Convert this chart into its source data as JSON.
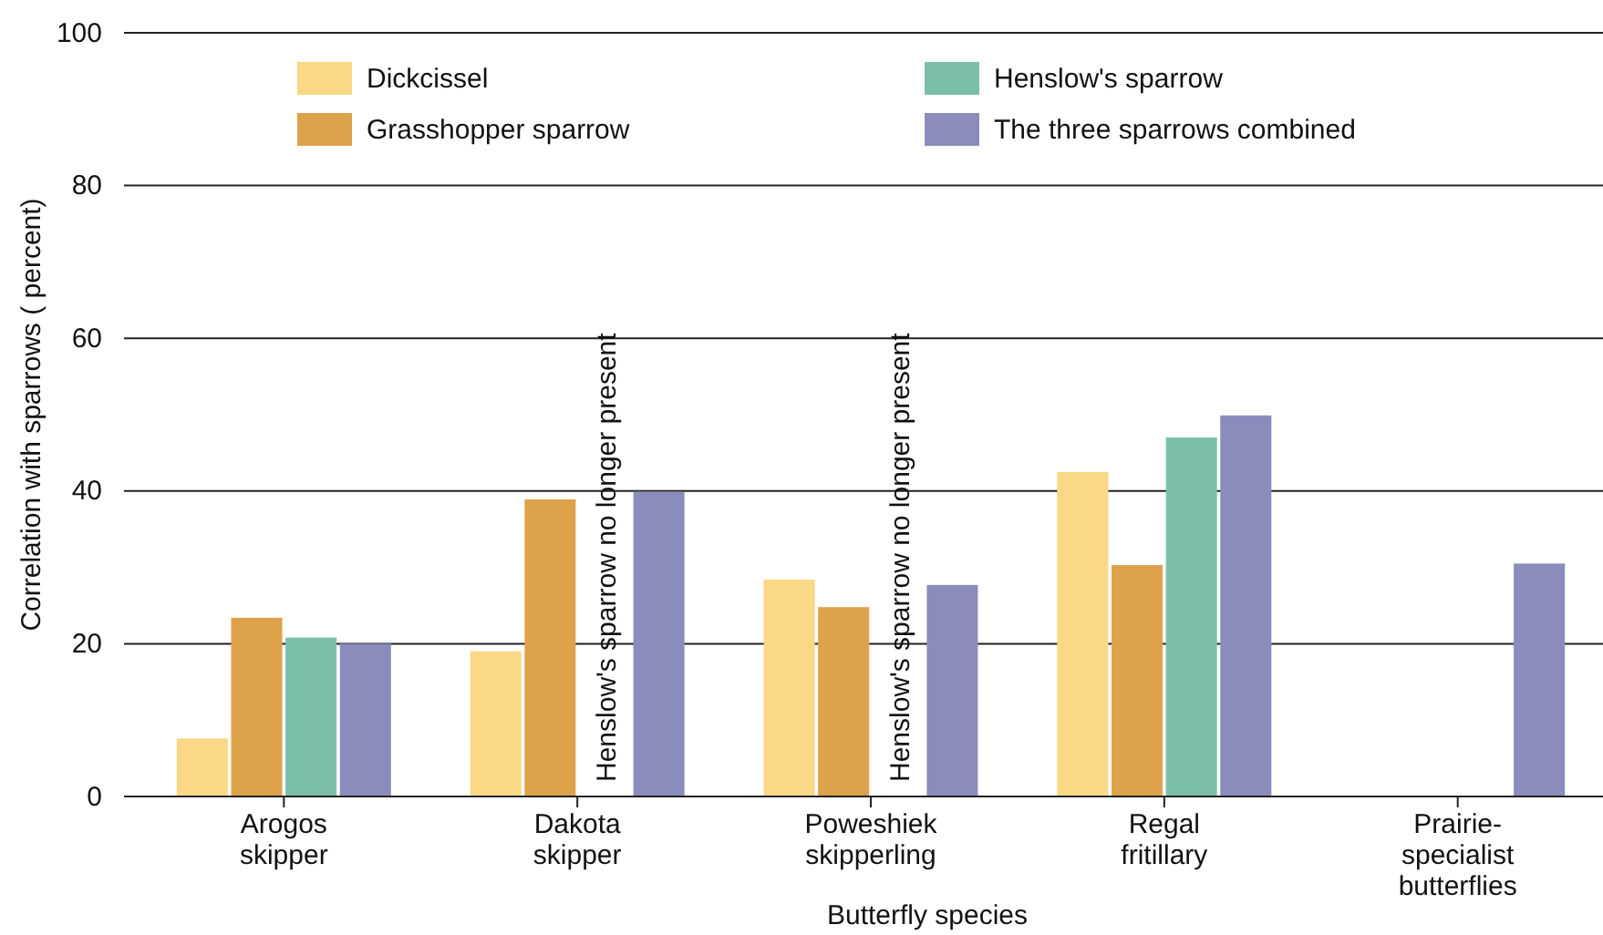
{
  "chart_data": {
    "type": "bar",
    "xlabel": "Butterfly species",
    "ylabel": "Correlation with sparrows ( percent)",
    "categories": [
      "Arogos\nskipper",
      "Dakota\nskipper",
      "Poweshiek\nskipperling",
      "Regal\nfritillary",
      "Prairie-\nspecialist\nbutterflies"
    ],
    "series": [
      {
        "name": "Dickcissel",
        "color": "#fad886",
        "values": [
          7.6,
          19,
          28.4,
          42.5,
          null
        ]
      },
      {
        "name": "Grasshopper sparrow",
        "color": "#dea24a",
        "values": [
          23.4,
          38.9,
          24.8,
          30.3,
          null
        ]
      },
      {
        "name": "Henslow's sparrow",
        "color": "#7bbfa7",
        "values": [
          20.8,
          null,
          null,
          47,
          null
        ]
      },
      {
        "name": "The three sparrows combined",
        "color": "#8a8dbb",
        "values": [
          20,
          39.9,
          27.7,
          49.9,
          30.5
        ]
      }
    ],
    "ylim": [
      0,
      100
    ],
    "yticks": [
      0,
      20,
      40,
      60,
      80,
      100
    ],
    "grid": "y",
    "legend": "top",
    "annotations": [
      "Henslow's sparrow no longer present",
      "Henslow's sparrow no longer present"
    ]
  }
}
